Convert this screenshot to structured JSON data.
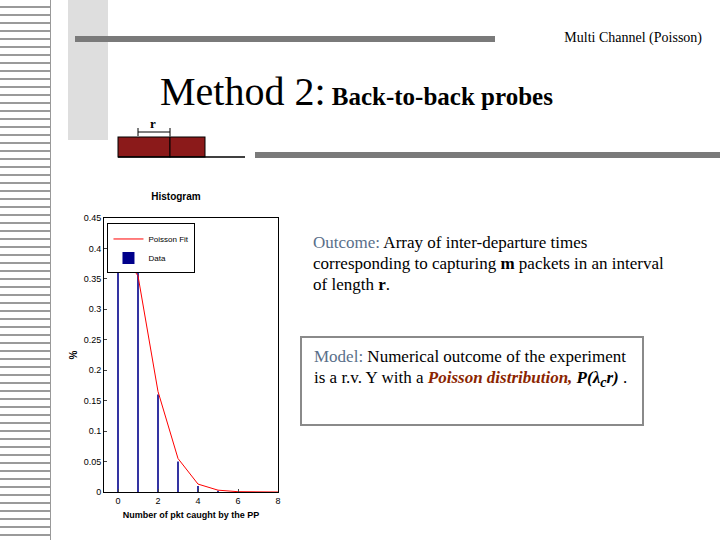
{
  "slide": {
    "header": "Multi Channel (Poisson)",
    "title": "Method 2:",
    "subtitle": "Back-to-back probes",
    "diagram_label": "r",
    "outcome": [
      {
        "text": "Outcome:",
        "color": "#5a6f8a"
      },
      {
        "text": " Array of inter-departure times corresponding to capturing "
      },
      {
        "text": "m",
        "bold": true
      },
      {
        "text": " packets in an interval of length "
      },
      {
        "text": "r",
        "bold": true
      },
      {
        "text": "."
      }
    ],
    "model": [
      {
        "text": "Model:",
        "color": "#5a6f8a"
      },
      {
        "text": " Numerical outcome of the experiment is a r.v. Y with a "
      },
      {
        "text": "Poisson distribution,",
        "bold": true,
        "italic": true,
        "color": "#8b2500"
      },
      {
        "text": " "
      },
      {
        "text": "P(λ",
        "bold": true,
        "italic": true
      },
      {
        "text": "c",
        "bold": true,
        "italic": true,
        "sub": true
      },
      {
        "text": "r)",
        "bold": true,
        "italic": true
      },
      {
        "text": " ."
      }
    ]
  },
  "chart_data": {
    "type": "bar",
    "title": "Histogram",
    "x_label": "Number of pkt caught by the PP",
    "y_label": "%",
    "x": [
      0,
      1,
      2,
      3,
      4,
      5,
      6,
      7,
      8
    ],
    "series": [
      {
        "name": "Poisson Fit",
        "type": "line",
        "color": "#ff0000",
        "values": [
          0.4,
          0.355,
          0.165,
          0.055,
          0.013,
          0.003,
          0.0005,
          0,
          0
        ]
      },
      {
        "name": "Data",
        "type": "bar",
        "color": "#00008b",
        "values": [
          0.4,
          0.37,
          0.16,
          0.05,
          0.01,
          0.002,
          0,
          0,
          0
        ]
      }
    ],
    "xlim": [
      -0.7,
      8
    ],
    "xticks": [
      0,
      2,
      4,
      6,
      8
    ],
    "ylim": [
      0,
      0.45
    ],
    "yticks": [
      0,
      0.05,
      0.1,
      0.15,
      0.2,
      0.25,
      0.3,
      0.35,
      0.4,
      0.45
    ],
    "legend": "upper left",
    "grid": false
  }
}
